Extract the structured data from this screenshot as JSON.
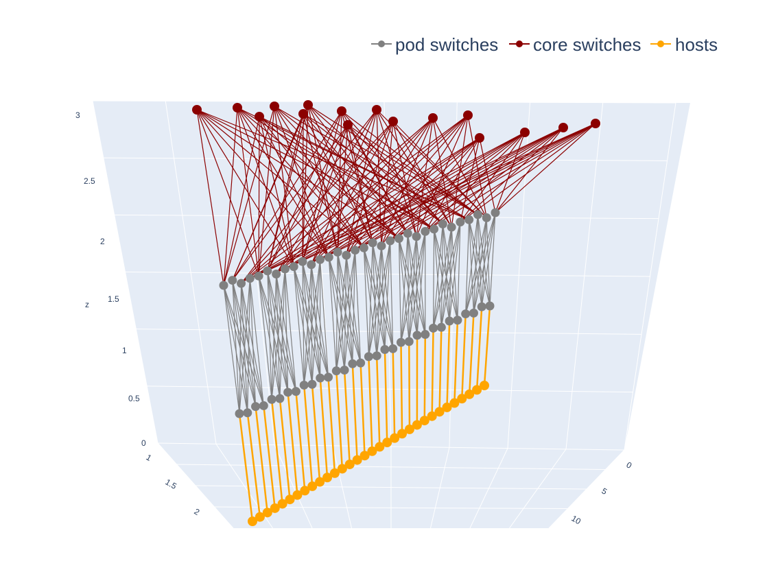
{
  "chart_data": {
    "type": "scatter3d",
    "title": "",
    "legend": {
      "placement": "top-right",
      "entries": [
        {
          "name": "pod switches",
          "color": "#808080"
        },
        {
          "name": "core switches",
          "color": "#8b0000"
        },
        {
          "name": "hosts",
          "color": "#ffa500"
        }
      ]
    },
    "axes": {
      "x": {
        "label": "",
        "range": [
          0,
          15
        ],
        "ticks": [
          "0",
          "5",
          "10"
        ]
      },
      "y": {
        "label": "",
        "range": [
          0.8,
          2.2
        ],
        "ticks": [
          "1",
          "1.5",
          "2"
        ]
      },
      "z": {
        "label": "z",
        "range": [
          0,
          3
        ],
        "ticks": [
          "0",
          "0.5",
          "1",
          "1.5",
          "2",
          "2.5",
          "3"
        ]
      }
    },
    "series": [
      {
        "name": "pod switches",
        "levels": [
          {
            "z": 1,
            "count": 32
          },
          {
            "z": 2,
            "count": 32
          }
        ]
      },
      {
        "name": "core switches",
        "levels": [
          {
            "z": 3,
            "count": 16
          }
        ]
      },
      {
        "name": "hosts",
        "levels": [
          {
            "z": 0,
            "count": 32
          }
        ]
      }
    ]
  }
}
